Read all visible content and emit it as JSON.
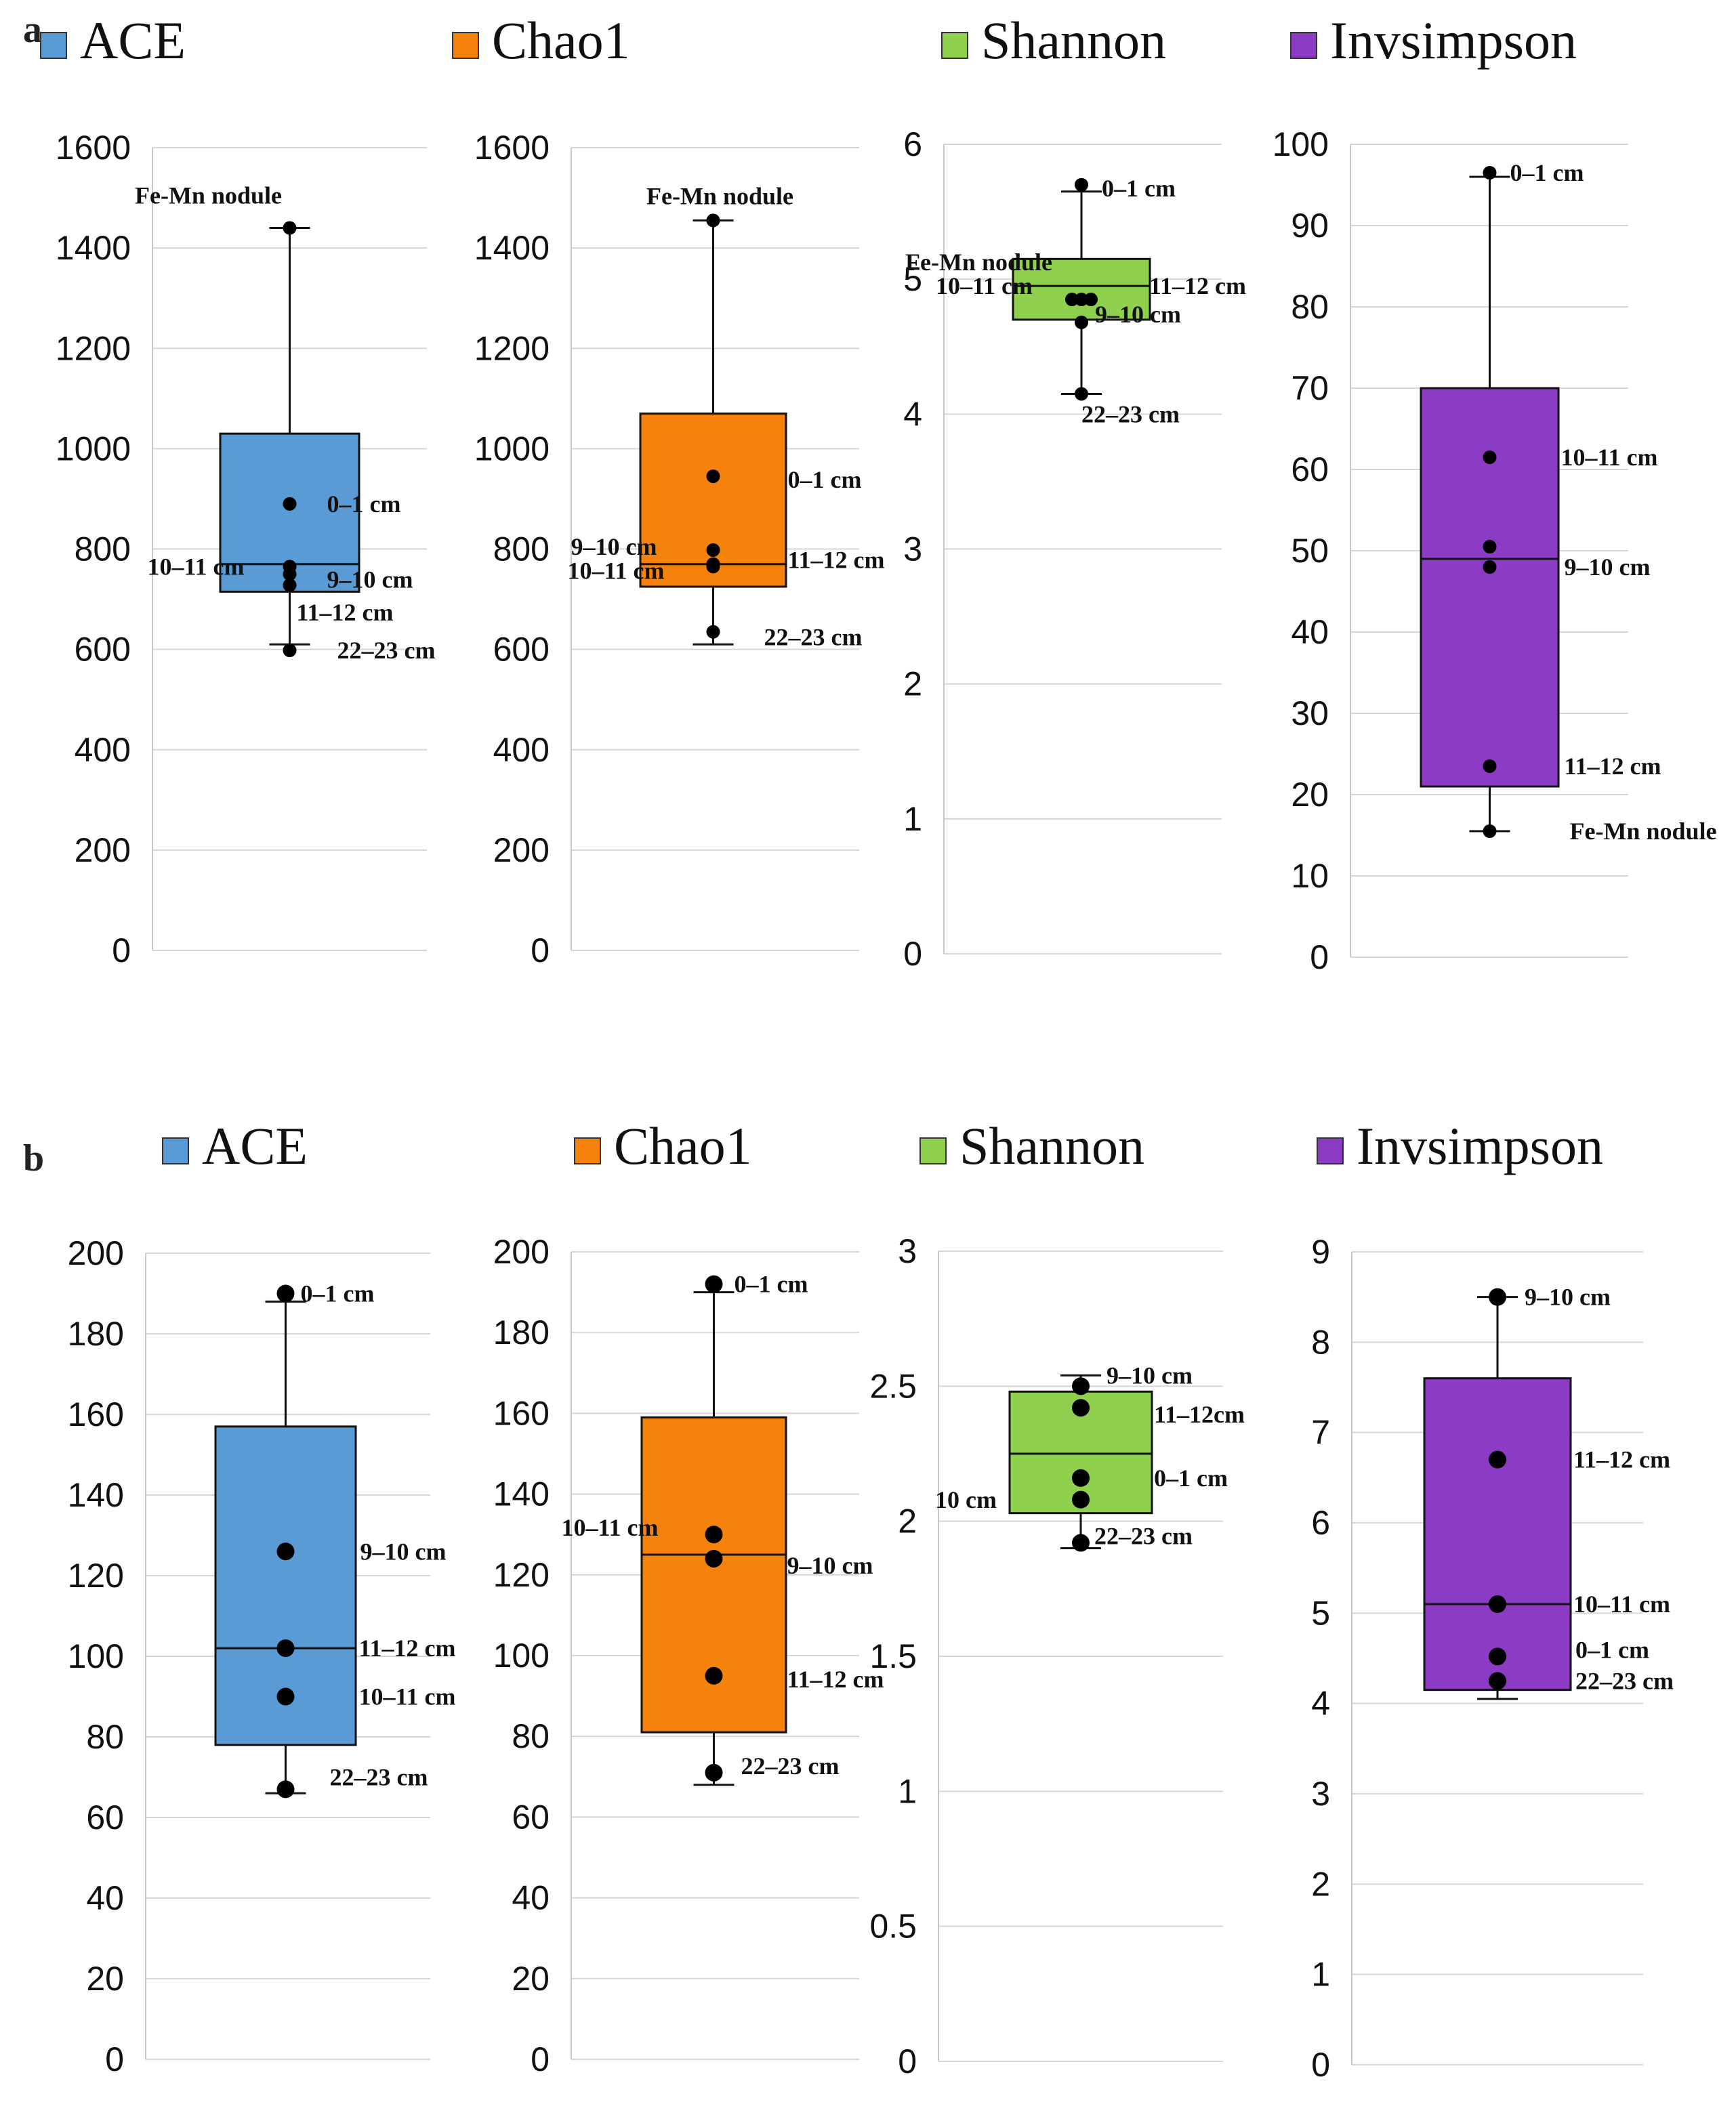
{
  "chart_data": [
    {
      "type": "box",
      "panel": "a",
      "title": "ACE",
      "color": "#5b9bd5",
      "ylim": [
        0,
        1600
      ],
      "yticks": [
        0,
        200,
        400,
        600,
        800,
        1000,
        1200,
        1400,
        1600
      ],
      "box": {
        "whisker_low": 610,
        "q1": 715,
        "median": 770,
        "q3": 1030,
        "whisker_high": 1440
      },
      "points": [
        {
          "label": "Fe-Mn nodule",
          "value": 1440
        },
        {
          "label": "0–1 cm",
          "value": 890
        },
        {
          "label": "10–11 cm",
          "value": 765
        },
        {
          "label": "9–10 cm",
          "value": 750
        },
        {
          "label": "11–12 cm",
          "value": 728
        },
        {
          "label": "22–23 cm",
          "value": 598
        }
      ]
    },
    {
      "type": "box",
      "panel": "a",
      "title": "Chao1",
      "color": "#f5820d",
      "ylim": [
        0,
        1600
      ],
      "yticks": [
        0,
        200,
        400,
        600,
        800,
        1000,
        1200,
        1400,
        1600
      ],
      "box": {
        "whisker_low": 610,
        "q1": 725,
        "median": 770,
        "q3": 1070,
        "whisker_high": 1455
      },
      "points": [
        {
          "label": "Fe-Mn nodule",
          "value": 1455
        },
        {
          "label": "0–1 cm",
          "value": 945
        },
        {
          "label": "9–10 cm",
          "value": 798
        },
        {
          "label": "10–11 cm",
          "value": 770
        },
        {
          "label": "11–12 cm",
          "value": 765
        },
        {
          "label": "22–23 cm",
          "value": 635
        }
      ]
    },
    {
      "type": "box",
      "panel": "a",
      "title": "Shannon",
      "color": "#8fd14f",
      "ylim": [
        0,
        6
      ],
      "yticks": [
        0,
        1,
        2,
        3,
        4,
        5,
        6
      ],
      "box": {
        "whisker_low": 4.15,
        "q1": 4.7,
        "median": 4.95,
        "q3": 5.15,
        "whisker_high": 5.65
      },
      "points": [
        {
          "label": "0–1 cm",
          "value": 5.7
        },
        {
          "label": "Fe-Mn nodule",
          "value": 4.85
        },
        {
          "label": "10–11 cm",
          "value": 4.85
        },
        {
          "label": "11–12 cm",
          "value": 4.85
        },
        {
          "label": "9–10 cm",
          "value": 4.68
        },
        {
          "label": "22–23 cm",
          "value": 4.15
        }
      ]
    },
    {
      "type": "box",
      "panel": "a",
      "title": "Invsimpson",
      "color": "#8b3bc4",
      "ylim": [
        0,
        100
      ],
      "yticks": [
        0,
        10,
        20,
        30,
        40,
        50,
        60,
        70,
        80,
        90,
        100
      ],
      "box": {
        "whisker_low": 15.5,
        "q1": 21,
        "median": 49,
        "q3": 70,
        "whisker_high": 96
      },
      "points": [
        {
          "label": "0–1 cm",
          "value": 96.5
        },
        {
          "label": "10–11 cm",
          "value": 61.5
        },
        {
          "label": "9–10 cm",
          "value": 50.5
        },
        {
          "label": "",
          "value": 48
        },
        {
          "label": "11–12 cm",
          "value": 23.5
        },
        {
          "label": "Fe-Mn nodule",
          "value": 15.5
        }
      ]
    },
    {
      "type": "box",
      "panel": "b",
      "title": "ACE",
      "color": "#5b9bd5",
      "ylim": [
        0,
        200
      ],
      "yticks": [
        0,
        20,
        40,
        60,
        80,
        100,
        120,
        140,
        160,
        180,
        200
      ],
      "box": {
        "whisker_low": 66,
        "q1": 78,
        "median": 102,
        "q3": 157,
        "whisker_high": 188
      },
      "points": [
        {
          "label": "0–1 cm",
          "value": 190
        },
        {
          "label": "9–10 cm",
          "value": 126
        },
        {
          "label": "11–12 cm",
          "value": 102
        },
        {
          "label": "10–11 cm",
          "value": 90
        },
        {
          "label": "22–23 cm",
          "value": 67
        }
      ]
    },
    {
      "type": "box",
      "panel": "b",
      "title": "Chao1",
      "color": "#f5820d",
      "ylim": [
        0,
        200
      ],
      "yticks": [
        0,
        20,
        40,
        60,
        80,
        100,
        120,
        140,
        160,
        180,
        200
      ],
      "box": {
        "whisker_low": 68,
        "q1": 81,
        "median": 125,
        "q3": 159,
        "whisker_high": 190
      },
      "points": [
        {
          "label": "0–1 cm",
          "value": 192
        },
        {
          "label": "10–11 cm",
          "value": 130
        },
        {
          "label": "9–10 cm",
          "value": 124
        },
        {
          "label": "11–12 cm",
          "value": 95
        },
        {
          "label": "22–23 cm",
          "value": 71
        }
      ]
    },
    {
      "type": "box",
      "panel": "b",
      "title": "Shannon",
      "color": "#8fd14f",
      "ylim": [
        0,
        3
      ],
      "yticks": [
        0,
        0.5,
        1,
        1.5,
        2,
        2.5,
        3
      ],
      "yticklabels": [
        "0",
        "0.5",
        "1",
        "1.5",
        "2",
        "2.5",
        "3"
      ],
      "box": {
        "whisker_low": 1.9,
        "q1": 2.03,
        "median": 2.25,
        "q3": 2.48,
        "whisker_high": 2.54
      },
      "points": [
        {
          "label": "9–10 cm",
          "value": 2.5
        },
        {
          "label": "11–12cm",
          "value": 2.42
        },
        {
          "label": "0–1 cm",
          "value": 2.16
        },
        {
          "label": "10 cm",
          "value": 2.08
        },
        {
          "label": "22–23 cm",
          "value": 1.92
        }
      ]
    },
    {
      "type": "box",
      "panel": "b",
      "title": "Invsimpson",
      "color": "#8b3bc4",
      "ylim": [
        0,
        9
      ],
      "yticks": [
        0,
        1,
        2,
        3,
        4,
        5,
        6,
        7,
        8,
        9
      ],
      "box": {
        "whisker_low": 4.05,
        "q1": 4.15,
        "median": 5.1,
        "q3": 7.6,
        "whisker_high": 8.5
      },
      "points": [
        {
          "label": "9–10 cm",
          "value": 8.5
        },
        {
          "label": "11–12 cm",
          "value": 6.7
        },
        {
          "label": "10–11 cm",
          "value": 5.1
        },
        {
          "label": "0–1 cm",
          "value": 4.52
        },
        {
          "label": "22–23 cm",
          "value": 4.25
        }
      ]
    }
  ],
  "panel_labels": {
    "a": "a",
    "b": "b"
  }
}
